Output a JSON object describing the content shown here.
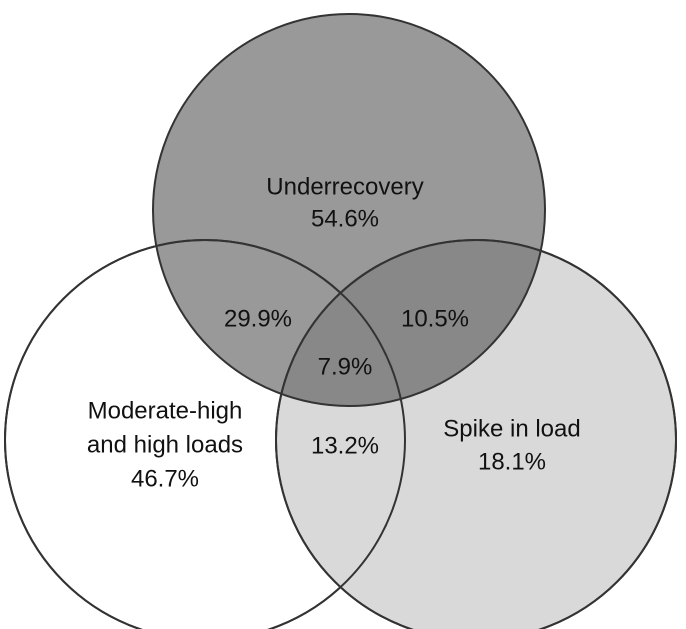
{
  "sets": [
    {
      "name_lines": [
        "Underrecovery"
      ],
      "value": "54.6%"
    },
    {
      "name_lines": [
        "Moderate-high",
        "and high loads"
      ],
      "value": "46.7%"
    },
    {
      "name_lines": [
        "Spike in load"
      ],
      "value": "18.1%"
    }
  ],
  "intersections": [
    {
      "sets": "Underrecovery & Moderate-high and high loads",
      "value": "29.9%"
    },
    {
      "sets": "Underrecovery & Spike in load",
      "value": "10.5%"
    },
    {
      "sets": "all three",
      "value": "7.9%"
    },
    {
      "sets": "Moderate-high and high loads & Spike in load",
      "value": "13.2%"
    }
  ]
}
